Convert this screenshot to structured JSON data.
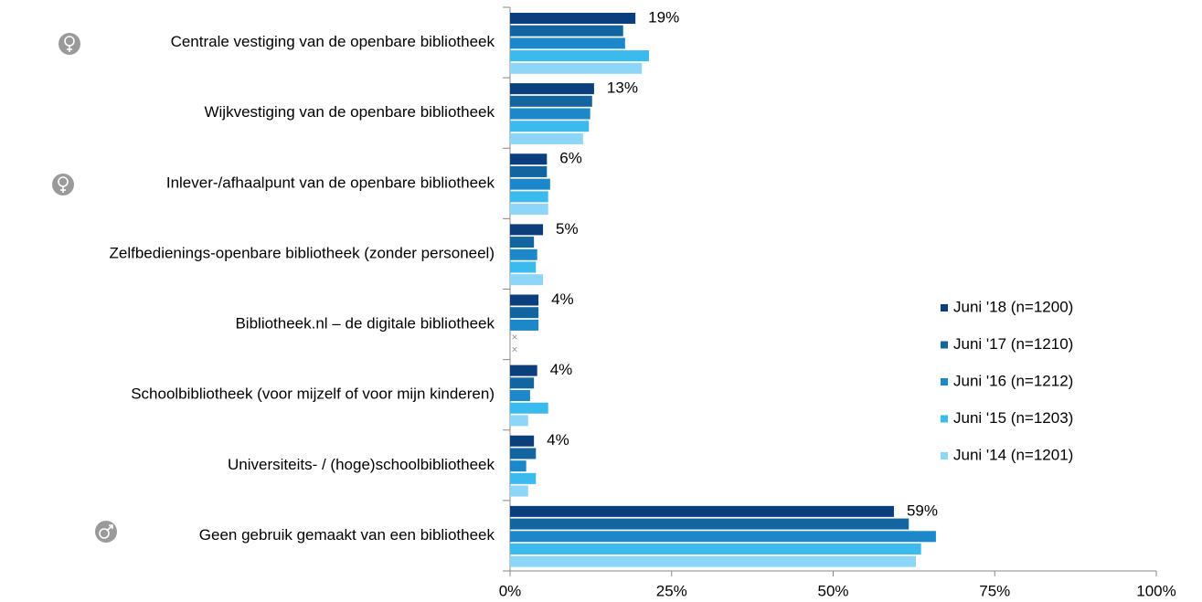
{
  "chart_data": {
    "type": "hbar",
    "categories": [
      "Centrale vestiging van de openbare bibliotheek",
      "Wijkvestiging van de openbare bibliotheek",
      "Inlever-/afhaalpunt van de openbare bibliotheek",
      "Zelfbedienings-openbare bibliotheek (zonder personeel)",
      "Bibliotheek.nl – de digitale bibliotheek",
      "Schoolbibliotheek (voor mijzelf of voor mijn kinderen)",
      "Universiteits- / (hoge)schoolbibliotheek",
      "Geen gebruik gemaakt van een bibliotheek"
    ],
    "series": [
      {
        "name": "Juni '18 (n=1200)",
        "color": "#0b3e7c",
        "values": [
          19.4,
          13,
          5.7,
          5.1,
          4.4,
          4.2,
          3.7,
          59.4
        ],
        "value_labels": [
          "19%",
          "13%",
          "6%",
          "5%",
          "4%",
          "4%",
          "4%",
          "59%"
        ]
      },
      {
        "name": "Juni '17 (n=1210)",
        "color": "#13659f",
        "values": [
          17.5,
          12.7,
          5.7,
          3.7,
          4.4,
          3.7,
          4.0,
          61.7
        ]
      },
      {
        "name": "Juni '16 (n=1212)",
        "color": "#1c88c9",
        "values": [
          17.8,
          12.4,
          6.2,
          4.2,
          4.4,
          3.1,
          2.5,
          65.9
        ]
      },
      {
        "name": "Juni '15 (n=1203)",
        "color": "#3bbaee",
        "values": [
          21.5,
          12.2,
          5.9,
          4.0,
          null,
          5.9,
          4.0,
          63.6
        ]
      },
      {
        "name": "Juni '14 (n=1201)",
        "color": "#8ed6f8",
        "values": [
          20.4,
          11.3,
          5.9,
          5.1,
          null,
          2.8,
          2.8,
          62.8
        ]
      }
    ],
    "xlim": [
      0,
      100
    ],
    "xticks": [
      {
        "value": 0,
        "label": "0%"
      },
      {
        "value": 25,
        "label": "25%"
      },
      {
        "value": 50,
        "label": "50%"
      },
      {
        "value": 75,
        "label": "75%"
      },
      {
        "value": 100,
        "label": "100%"
      }
    ],
    "legend": "right"
  }
}
